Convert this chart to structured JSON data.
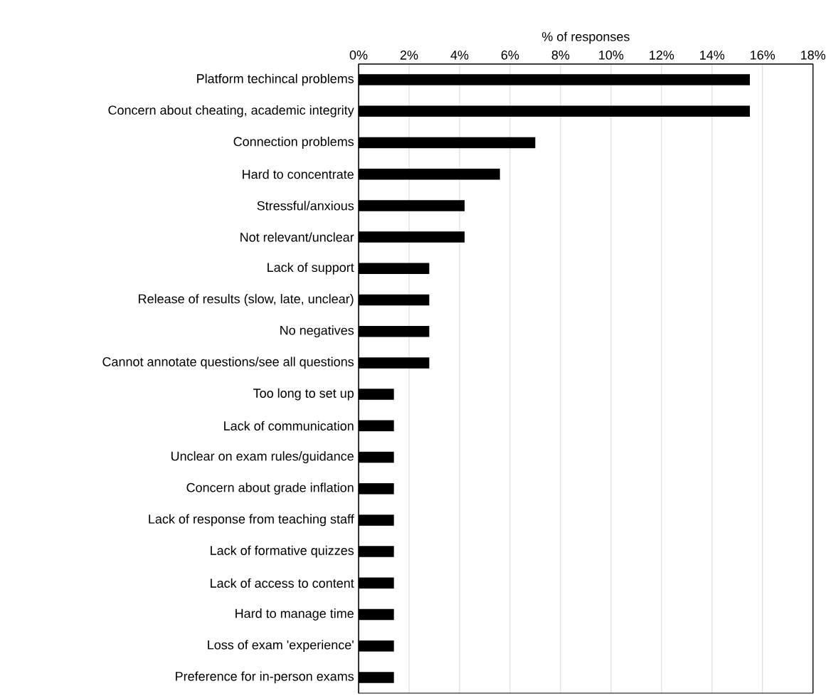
{
  "chart_data": {
    "type": "bar",
    "orientation": "horizontal",
    "xlabel": "% of responses",
    "categories": [
      "Platform techincal problems",
      "Concern about cheating, academic integrity",
      "Connection problems",
      "Hard to concentrate",
      "Stressful/anxious",
      "Not relevant/unclear",
      "Lack of support",
      "Release of results (slow, late, unclear)",
      "No negatives",
      "Cannot annotate questions/see all questions",
      "Too long to set up",
      "Lack of communication",
      "Unclear on exam rules/guidance",
      "Concern about grade inflation",
      "Lack of response from teaching staff",
      "Lack of formative quizzes",
      "Lack of access to content",
      "Hard to manage time",
      "Loss of exam 'experience'",
      "Preference for in-person exams"
    ],
    "values": [
      15.5,
      15.5,
      7.0,
      5.6,
      4.2,
      4.2,
      2.8,
      2.8,
      2.8,
      2.8,
      1.4,
      1.4,
      1.4,
      1.4,
      1.4,
      1.4,
      1.4,
      1.4,
      1.4,
      1.4
    ],
    "color": "#000000",
    "xlim": [
      0,
      18
    ],
    "xticks": [
      {
        "value": 0,
        "label": "0%"
      },
      {
        "value": 2,
        "label": "2%"
      },
      {
        "value": 4,
        "label": "4%"
      },
      {
        "value": 6,
        "label": "6%"
      },
      {
        "value": 8,
        "label": "8%"
      },
      {
        "value": 10,
        "label": "10%"
      },
      {
        "value": 12,
        "label": "12%"
      },
      {
        "value": 14,
        "label": "14%"
      },
      {
        "value": 16,
        "label": "16%"
      },
      {
        "value": 18,
        "label": "18%"
      }
    ],
    "grid": "x"
  }
}
